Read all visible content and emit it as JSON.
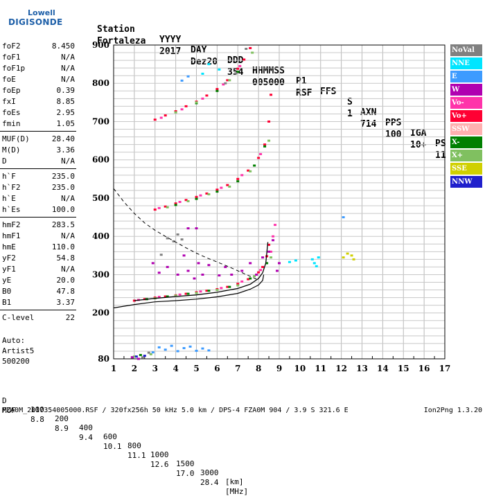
{
  "logo": {
    "line1": "Lowell",
    "line2": "DIGISONDE"
  },
  "header": {
    "labels": [
      "Station",
      "YYYY",
      "DAY",
      "DDD",
      "HHMMSS",
      "P1",
      "FFS",
      "S",
      "AXN",
      "PPS",
      "IGA",
      "PS"
    ],
    "values": [
      "Fortaleza",
      "2017",
      "Dez20",
      "354",
      "005000",
      "RSF",
      "",
      "1",
      "714",
      "100",
      "10+",
      "11"
    ]
  },
  "params": [
    {
      "label": "foF2",
      "value": "8.450"
    },
    {
      "label": "foF1",
      "value": "N/A"
    },
    {
      "label": "foF1p",
      "value": "N/A"
    },
    {
      "label": "foE",
      "value": "N/A"
    },
    {
      "label": "foEp",
      "value": "0.39"
    },
    {
      "label": "fxI",
      "value": "8.85"
    },
    {
      "label": "foEs",
      "value": "2.95"
    },
    {
      "label": "fmin",
      "value": "1.05"
    },
    {
      "label": "MUF(D)",
      "value": "28.40"
    },
    {
      "label": "M(D)",
      "value": "3.36"
    },
    {
      "label": "D",
      "value": "N/A"
    },
    {
      "label": "h`F",
      "value": "235.0"
    },
    {
      "label": "h`F2",
      "value": "235.0"
    },
    {
      "label": "h`E",
      "value": "N/A"
    },
    {
      "label": "h`Es",
      "value": "100.0"
    },
    {
      "label": "hmF2",
      "value": "283.5"
    },
    {
      "label": "hmF1",
      "value": "N/A"
    },
    {
      "label": "hmE",
      "value": "110.0"
    },
    {
      "label": "yF2",
      "value": "54.8"
    },
    {
      "label": "yF1",
      "value": "N/A"
    },
    {
      "label": "yE",
      "value": "20.0"
    },
    {
      "label": "B0",
      "value": "47.8"
    },
    {
      "label": "B1",
      "value": "3.37"
    },
    {
      "label": "C-level",
      "value": "22"
    }
  ],
  "auto": {
    "line1": "Auto:",
    "line2": "Artist5",
    "line3": "500200"
  },
  "legend": [
    {
      "name": "NoVal",
      "color": "#808080"
    },
    {
      "name": "NNE",
      "color": "#00e5ff"
    },
    {
      "name": "E",
      "color": "#3d9bff"
    },
    {
      "name": "W",
      "color": "#b000b0"
    },
    {
      "name": "Vo-",
      "color": "#ff33aa"
    },
    {
      "name": "Vo+",
      "color": "#ff0033"
    },
    {
      "name": "SSW",
      "color": "#ffb0b0"
    },
    {
      "name": "X-",
      "color": "#008000"
    },
    {
      "name": "X+",
      "color": "#80c060"
    },
    {
      "name": "SSE",
      "color": "#d0d000"
    },
    {
      "name": "NNW",
      "color": "#2020cc"
    }
  ],
  "footer": {
    "d_row": {
      "label": "D",
      "values": [
        "100",
        "200",
        "400",
        "600",
        "800",
        "1000",
        "1500",
        "3000",
        "[km]"
      ]
    },
    "muf_row": {
      "label": "MUF",
      "values": [
        "8.8",
        "8.9",
        "9.4",
        "10.1",
        "11.1",
        "12.6",
        "17.0",
        "28.4",
        "[MHz]"
      ]
    },
    "info": "FZA0M_2017354005000.RSF / 320fx256h 50 kHz 5.0 km / DPS-4 FZA0M 904 / 3.9 S 321.6 E",
    "version": "Ion2Png 1.3.20"
  },
  "chart_data": {
    "type": "scatter",
    "xlim": [
      1,
      17
    ],
    "ylim": [
      80,
      900
    ],
    "x_ticks": [
      1,
      2,
      3,
      4,
      5,
      6,
      7,
      8,
      9,
      10,
      11,
      12,
      13,
      14,
      15,
      16,
      17
    ],
    "y_ticks": [
      80,
      200,
      300,
      400,
      500,
      600,
      700,
      800,
      900
    ],
    "grid": true,
    "series": [
      {
        "name": "Vo+",
        "color": "#ff0033",
        "points": [
          [
            2.0,
            232
          ],
          [
            2.5,
            236
          ],
          [
            3.0,
            240
          ],
          [
            3.5,
            243
          ],
          [
            4.0,
            246
          ],
          [
            4.5,
            250
          ],
          [
            5.0,
            254
          ],
          [
            5.5,
            258
          ],
          [
            6.0,
            262
          ],
          [
            6.5,
            268
          ],
          [
            7.0,
            276
          ],
          [
            7.5,
            288
          ],
          [
            8.0,
            306
          ],
          [
            8.2,
            320
          ],
          [
            8.4,
            348
          ],
          [
            8.5,
            378
          ],
          [
            3.0,
            470
          ],
          [
            3.5,
            478
          ],
          [
            4.0,
            486
          ],
          [
            4.5,
            495
          ],
          [
            5.0,
            503
          ],
          [
            5.5,
            512
          ],
          [
            6.0,
            522
          ],
          [
            6.5,
            534
          ],
          [
            7.0,
            550
          ],
          [
            7.5,
            572
          ],
          [
            8.0,
            605
          ],
          [
            8.3,
            640
          ],
          [
            8.5,
            700
          ],
          [
            8.6,
            770
          ],
          [
            3.0,
            705
          ],
          [
            3.5,
            716
          ],
          [
            4.0,
            727
          ],
          [
            4.5,
            740
          ],
          [
            5.0,
            752
          ],
          [
            5.5,
            768
          ],
          [
            6.0,
            785
          ],
          [
            6.5,
            808
          ],
          [
            7.0,
            838
          ],
          [
            7.3,
            862
          ],
          [
            7.6,
            892
          ]
        ]
      },
      {
        "name": "Vo-",
        "color": "#ff33aa",
        "points": [
          [
            2.2,
            234
          ],
          [
            3.2,
            242
          ],
          [
            4.2,
            248
          ],
          [
            5.2,
            256
          ],
          [
            6.2,
            265
          ],
          [
            7.2,
            282
          ],
          [
            8.1,
            312
          ],
          [
            8.6,
            360
          ],
          [
            3.2,
            474
          ],
          [
            4.2,
            490
          ],
          [
            5.2,
            507
          ],
          [
            6.2,
            527
          ],
          [
            7.2,
            560
          ],
          [
            8.1,
            615
          ],
          [
            3.3,
            710
          ],
          [
            4.3,
            732
          ],
          [
            5.3,
            760
          ],
          [
            6.3,
            797
          ],
          [
            7.1,
            845
          ],
          [
            8.7,
            400
          ],
          [
            8.8,
            430
          ]
        ]
      },
      {
        "name": "X-",
        "color": "#008000",
        "points": [
          [
            2.6,
            236
          ],
          [
            3.6,
            243
          ],
          [
            4.6,
            250
          ],
          [
            5.6,
            258
          ],
          [
            6.6,
            268
          ],
          [
            7.6,
            290
          ],
          [
            8.4,
            330
          ],
          [
            4.0,
            482
          ],
          [
            5.0,
            498
          ],
          [
            6.0,
            517
          ],
          [
            7.0,
            544
          ],
          [
            7.8,
            585
          ],
          [
            8.3,
            635
          ],
          [
            5.0,
            748
          ],
          [
            6.0,
            780
          ],
          [
            7.0,
            830
          ],
          [
            1.9,
            84
          ],
          [
            2.3,
            90
          ]
        ]
      },
      {
        "name": "X+",
        "color": "#80c060",
        "points": [
          [
            3.0,
            238
          ],
          [
            4.0,
            245
          ],
          [
            5.0,
            252
          ],
          [
            6.0,
            260
          ],
          [
            7.0,
            272
          ],
          [
            7.8,
            296
          ],
          [
            8.6,
            345
          ],
          [
            3.6,
            476
          ],
          [
            4.6,
            492
          ],
          [
            5.6,
            510
          ],
          [
            6.6,
            530
          ],
          [
            7.6,
            570
          ],
          [
            8.5,
            650
          ],
          [
            4.0,
            724
          ],
          [
            5.0,
            750
          ],
          [
            6.6,
            808
          ],
          [
            7.7,
            880
          ],
          [
            2.0,
            86
          ],
          [
            2.8,
            92
          ]
        ]
      },
      {
        "name": "W",
        "color": "#b000b0",
        "points": [
          [
            2.9,
            330
          ],
          [
            3.2,
            305
          ],
          [
            3.6,
            320
          ],
          [
            4.1,
            300
          ],
          [
            4.4,
            350
          ],
          [
            4.6,
            310
          ],
          [
            4.9,
            290
          ],
          [
            5.1,
            330
          ],
          [
            5.3,
            300
          ],
          [
            5.6,
            325
          ],
          [
            6.1,
            298
          ],
          [
            6.4,
            320
          ],
          [
            6.7,
            300
          ],
          [
            7.2,
            310
          ],
          [
            7.6,
            330
          ],
          [
            7.9,
            300
          ],
          [
            8.2,
            345
          ],
          [
            8.5,
            360
          ],
          [
            8.7,
            390
          ],
          [
            8.9,
            310
          ],
          [
            9.0,
            330
          ],
          [
            4.6,
            421
          ],
          [
            5.0,
            421
          ],
          [
            1.9,
            84
          ],
          [
            2.2,
            80
          ]
        ]
      },
      {
        "name": "E",
        "color": "#3d9bff",
        "points": [
          [
            2.9,
            97
          ],
          [
            3.2,
            110
          ],
          [
            3.5,
            104
          ],
          [
            3.8,
            114
          ],
          [
            4.1,
            100
          ],
          [
            4.4,
            108
          ],
          [
            4.7,
            112
          ],
          [
            5.0,
            101
          ],
          [
            5.3,
            107
          ],
          [
            5.6,
            102
          ],
          [
            4.3,
            807
          ],
          [
            4.6,
            818
          ],
          [
            12.1,
            450
          ]
        ]
      },
      {
        "name": "NNE",
        "color": "#00e5ff",
        "points": [
          [
            5.6,
            850
          ],
          [
            6.1,
            836
          ],
          [
            10.6,
            340
          ],
          [
            10.7,
            330
          ],
          [
            10.9,
            345
          ],
          [
            10.8,
            322
          ],
          [
            9.5,
            333
          ],
          [
            9.8,
            337
          ],
          [
            5.3,
            825
          ]
        ]
      },
      {
        "name": "NoVal",
        "color": "#808080",
        "points": [
          [
            3.3,
            352
          ],
          [
            3.6,
            395
          ],
          [
            3.9,
            387
          ],
          [
            4.1,
            405
          ],
          [
            4.3,
            392
          ],
          [
            6.4,
            800
          ],
          [
            6.9,
            826
          ],
          [
            7.4,
            890
          ],
          [
            2.4,
            84
          ],
          [
            2.7,
            96
          ]
        ]
      },
      {
        "name": "SSE",
        "color": "#d0d000",
        "points": [
          [
            12.5,
            350
          ],
          [
            12.6,
            340
          ],
          [
            12.1,
            345
          ],
          [
            12.3,
            355
          ]
        ]
      },
      {
        "name": "NNW",
        "color": "#2020cc",
        "points": [
          [
            2.1,
            86
          ],
          [
            2.5,
            88
          ]
        ]
      }
    ],
    "profile_solid": [
      [
        2.0,
        232
      ],
      [
        3.0,
        238
      ],
      [
        4.0,
        243
      ],
      [
        5.0,
        247
      ],
      [
        6.0,
        254
      ],
      [
        7.0,
        264
      ],
      [
        7.6,
        275
      ],
      [
        8.0,
        290
      ],
      [
        8.2,
        305
      ],
      [
        8.35,
        330
      ],
      [
        8.45,
        385
      ]
    ],
    "profile_solid_lower": [
      [
        1.0,
        213
      ],
      [
        2.0,
        222
      ],
      [
        3.0,
        229
      ],
      [
        4.0,
        232
      ],
      [
        5.0,
        236
      ],
      [
        6.0,
        242
      ],
      [
        7.0,
        251
      ],
      [
        7.6,
        262
      ],
      [
        8.0,
        273
      ],
      [
        8.2,
        285
      ],
      [
        8.25,
        300
      ]
    ],
    "profile_dashed": [
      [
        1.0,
        525
      ],
      [
        1.5,
        490
      ],
      [
        2.0,
        460
      ],
      [
        2.5,
        435
      ],
      [
        3.0,
        416
      ],
      [
        3.5,
        400
      ],
      [
        4.0,
        385
      ],
      [
        4.5,
        370
      ],
      [
        5.0,
        356
      ],
      [
        5.5,
        344
      ],
      [
        6.0,
        333
      ],
      [
        6.5,
        322
      ],
      [
        7.0,
        310
      ],
      [
        7.5,
        298
      ],
      [
        8.0,
        286
      ]
    ]
  }
}
